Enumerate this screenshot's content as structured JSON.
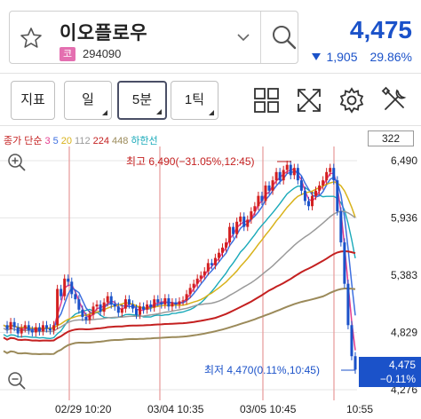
{
  "header": {
    "stock_name": "이오플로우",
    "market_badge": "코",
    "stock_code": "294090",
    "price": "4,475",
    "change_amount": "1,905",
    "change_pct": "29.86%",
    "change_color": "#1b52c9"
  },
  "toolbar": {
    "indicator_label": "지표",
    "period_day": "일",
    "period_5min": "5분",
    "period_1tick": "1틱",
    "icons": [
      "grid-layout-icon",
      "expand-icon",
      "settings-gear-icon",
      "tools-icon"
    ]
  },
  "legend": {
    "prefix": "종가 단순",
    "ma": [
      {
        "label": "3",
        "color": "#e43d8f"
      },
      {
        "label": "5",
        "color": "#3d6fe0"
      },
      {
        "label": "20",
        "color": "#d8b21a"
      },
      {
        "label": "112",
        "color": "#9a9a9a"
      },
      {
        "label": "224",
        "color": "#c42020"
      },
      {
        "label": "448",
        "color": "#9b8a5a"
      }
    ],
    "lower_band": "하한선",
    "lower_band_color": "#18a9b9",
    "count": "322"
  },
  "chart_data": {
    "type": "candlestick",
    "y_ticks": [
      "6,490",
      "5,936",
      "5,383",
      "4,829",
      "4,276"
    ],
    "x_ticks": [
      "02/29 10:20",
      "03/04 10:35",
      "03/05 10:45",
      "10:55"
    ],
    "high_annotation": "최고 6,490(−31.05%,12:45)",
    "low_annotation": "최저 4,470(0.11%,10:45)",
    "current_price": "4,475",
    "current_change": "−0.11%",
    "ylim": [
      4276,
      6490
    ],
    "up_color": "#d32020",
    "down_color": "#1b52c9"
  }
}
